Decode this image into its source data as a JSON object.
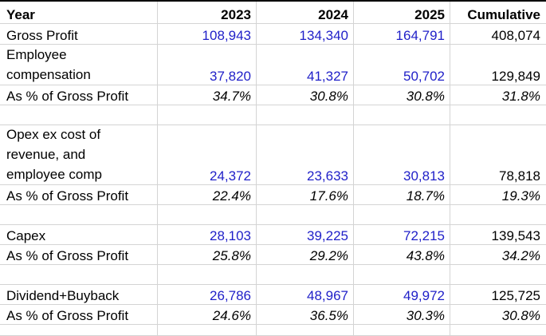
{
  "header": {
    "year": "Year",
    "y2023": "2023",
    "y2024": "2024",
    "y2025": "2025",
    "cumulative": "Cumulative"
  },
  "rows": {
    "gross_profit": {
      "label": "Gross Profit",
      "v2023": "108,943",
      "v2024": "134,340",
      "v2025": "164,791",
      "cumulative": "408,074"
    },
    "employee_comp": {
      "label_line1": "Employee",
      "label_line2": "compensation",
      "v2023": "37,820",
      "v2024": "41,327",
      "v2025": "50,702",
      "cumulative": "129,849"
    },
    "employee_comp_pct": {
      "label": "As % of Gross Profit",
      "v2023": "34.7%",
      "v2024": "30.8%",
      "v2025": "30.8%",
      "cumulative": "31.8%"
    },
    "opex": {
      "label_line1": "Opex ex cost of",
      "label_line2": "revenue, and",
      "label_line3": "employee comp",
      "v2023": "24,372",
      "v2024": "23,633",
      "v2025": "30,813",
      "cumulative": "78,818"
    },
    "opex_pct": {
      "label": "As % of Gross Profit",
      "v2023": "22.4%",
      "v2024": "17.6%",
      "v2025": "18.7%",
      "cumulative": "19.3%"
    },
    "capex": {
      "label": "Capex",
      "v2023": "28,103",
      "v2024": "39,225",
      "v2025": "72,215",
      "cumulative": "139,543"
    },
    "capex_pct": {
      "label": "As % of Gross Profit",
      "v2023": "25.8%",
      "v2024": "29.2%",
      "v2025": "43.8%",
      "cumulative": "34.2%"
    },
    "dividend_buyback": {
      "label": "Dividend+Buyback",
      "v2023": "26,786",
      "v2024": "48,967",
      "v2025": "49,972",
      "cumulative": "125,725"
    },
    "dividend_buyback_pct": {
      "label": "As % of Gross Profit",
      "v2023": "24.6%",
      "v2024": "36.5%",
      "v2025": "30.3%",
      "cumulative": "30.8%"
    }
  },
  "colors": {
    "input_value": "#1f1fc8",
    "formula_value": "#000000",
    "gridline": "#d4d4d4"
  }
}
